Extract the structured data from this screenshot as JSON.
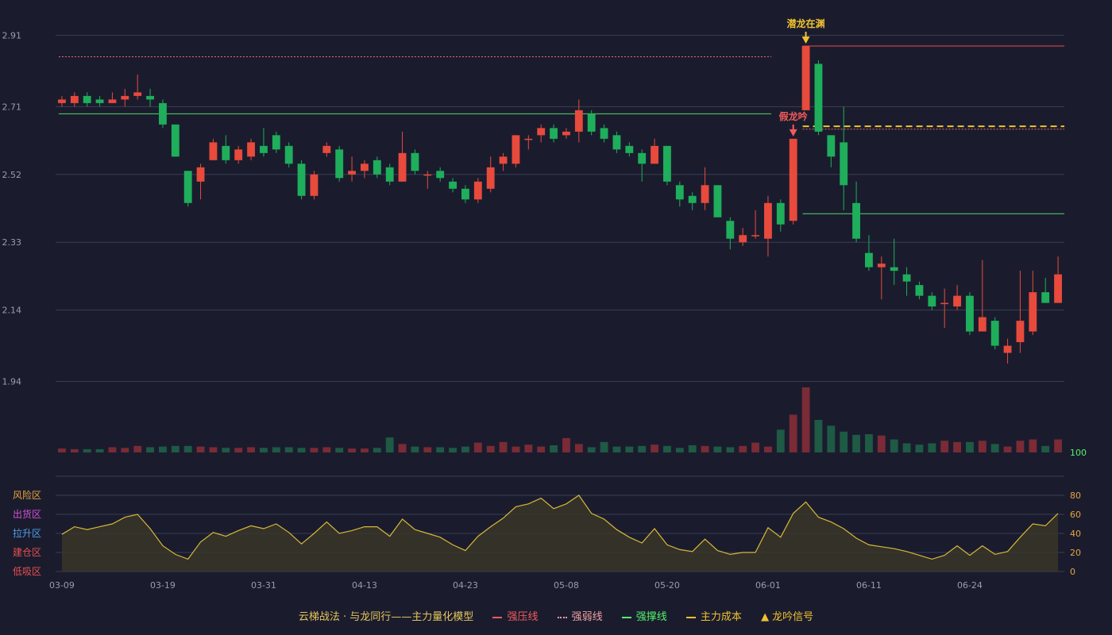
{
  "chart_data": {
    "type": "candlestick",
    "price_axis": {
      "ticks": [
        2.91,
        2.71,
        2.52,
        2.33,
        2.14,
        1.94
      ],
      "ylim": [
        1.89,
        2.96
      ]
    },
    "date_ticks": [
      {
        "index": 0,
        "label": "03-09"
      },
      {
        "index": 8,
        "label": "03-19"
      },
      {
        "index": 16,
        "label": "03-31"
      },
      {
        "index": 24,
        "label": "04-13"
      },
      {
        "index": 32,
        "label": "04-23"
      },
      {
        "index": 40,
        "label": "05-08"
      },
      {
        "index": 48,
        "label": "05-20"
      },
      {
        "index": 56,
        "label": "06-01"
      },
      {
        "index": 64,
        "label": "06-11"
      },
      {
        "index": 72,
        "label": "06-24"
      }
    ],
    "candles": [
      [
        2.72,
        2.73,
        2.71,
        2.74
      ],
      [
        2.72,
        2.74,
        2.71,
        2.75
      ],
      [
        2.74,
        2.72,
        2.71,
        2.75
      ],
      [
        2.73,
        2.72,
        2.71,
        2.74
      ],
      [
        2.72,
        2.73,
        2.72,
        2.75
      ],
      [
        2.73,
        2.74,
        2.71,
        2.76
      ],
      [
        2.74,
        2.75,
        2.73,
        2.8
      ],
      [
        2.74,
        2.73,
        2.71,
        2.76
      ],
      [
        2.72,
        2.66,
        2.65,
        2.73
      ],
      [
        2.66,
        2.57,
        2.57,
        2.66
      ],
      [
        2.53,
        2.44,
        2.43,
        2.53
      ],
      [
        2.5,
        2.54,
        2.45,
        2.55
      ],
      [
        2.56,
        2.61,
        2.56,
        2.62
      ],
      [
        2.6,
        2.56,
        2.55,
        2.63
      ],
      [
        2.56,
        2.59,
        2.55,
        2.6
      ],
      [
        2.57,
        2.61,
        2.56,
        2.62
      ],
      [
        2.6,
        2.58,
        2.57,
        2.65
      ],
      [
        2.63,
        2.59,
        2.58,
        2.64
      ],
      [
        2.6,
        2.55,
        2.54,
        2.61
      ],
      [
        2.55,
        2.46,
        2.45,
        2.56
      ],
      [
        2.46,
        2.52,
        2.45,
        2.53
      ],
      [
        2.58,
        2.6,
        2.57,
        2.61
      ],
      [
        2.59,
        2.51,
        2.5,
        2.6
      ],
      [
        2.52,
        2.53,
        2.5,
        2.57
      ],
      [
        2.53,
        2.55,
        2.51,
        2.56
      ],
      [
        2.56,
        2.52,
        2.51,
        2.57
      ],
      [
        2.54,
        2.5,
        2.49,
        2.55
      ],
      [
        2.5,
        2.58,
        2.5,
        2.64
      ],
      [
        2.58,
        2.53,
        2.52,
        2.59
      ],
      [
        2.52,
        2.52,
        2.48,
        2.53
      ],
      [
        2.53,
        2.51,
        2.5,
        2.54
      ],
      [
        2.5,
        2.48,
        2.47,
        2.51
      ],
      [
        2.48,
        2.45,
        2.44,
        2.49
      ],
      [
        2.45,
        2.5,
        2.44,
        2.51
      ],
      [
        2.48,
        2.54,
        2.47,
        2.57
      ],
      [
        2.55,
        2.57,
        2.53,
        2.58
      ],
      [
        2.55,
        2.63,
        2.54,
        2.63
      ],
      [
        2.62,
        2.62,
        2.59,
        2.63
      ],
      [
        2.63,
        2.65,
        2.61,
        2.66
      ],
      [
        2.65,
        2.62,
        2.61,
        2.66
      ],
      [
        2.63,
        2.64,
        2.62,
        2.65
      ],
      [
        2.64,
        2.7,
        2.61,
        2.73
      ],
      [
        2.69,
        2.64,
        2.63,
        2.7
      ],
      [
        2.65,
        2.62,
        2.61,
        2.66
      ],
      [
        2.63,
        2.59,
        2.58,
        2.64
      ],
      [
        2.6,
        2.58,
        2.57,
        2.61
      ],
      [
        2.58,
        2.55,
        2.5,
        2.59
      ],
      [
        2.55,
        2.6,
        2.55,
        2.62
      ],
      [
        2.6,
        2.5,
        2.49,
        2.6
      ],
      [
        2.49,
        2.45,
        2.43,
        2.5
      ],
      [
        2.46,
        2.44,
        2.42,
        2.47
      ],
      [
        2.44,
        2.49,
        2.42,
        2.54
      ],
      [
        2.49,
        2.4,
        2.4,
        2.49
      ],
      [
        2.39,
        2.34,
        2.31,
        2.4
      ],
      [
        2.33,
        2.35,
        2.32,
        2.37
      ],
      [
        2.35,
        2.35,
        2.34,
        2.42
      ],
      [
        2.34,
        2.44,
        2.29,
        2.46
      ],
      [
        2.44,
        2.38,
        2.36,
        2.45
      ],
      [
        2.39,
        2.62,
        2.38,
        2.62
      ],
      [
        2.7,
        2.88,
        2.7,
        2.88
      ],
      [
        2.83,
        2.64,
        2.63,
        2.84
      ],
      [
        2.63,
        2.57,
        2.54,
        2.63
      ],
      [
        2.61,
        2.49,
        2.42,
        2.71
      ],
      [
        2.44,
        2.34,
        2.33,
        2.5
      ],
      [
        2.3,
        2.26,
        2.25,
        2.35
      ],
      [
        2.26,
        2.27,
        2.17,
        2.29
      ],
      [
        2.26,
        2.25,
        2.21,
        2.34
      ],
      [
        2.24,
        2.22,
        2.18,
        2.26
      ],
      [
        2.21,
        2.18,
        2.17,
        2.22
      ],
      [
        2.18,
        2.15,
        2.14,
        2.19
      ],
      [
        2.16,
        2.16,
        2.09,
        2.2
      ],
      [
        2.15,
        2.18,
        2.14,
        2.21
      ],
      [
        2.18,
        2.08,
        2.07,
        2.19
      ],
      [
        2.08,
        2.12,
        2.08,
        2.28
      ],
      [
        2.11,
        2.04,
        2.03,
        2.12
      ],
      [
        2.02,
        2.04,
        1.99,
        2.06
      ],
      [
        2.05,
        2.11,
        2.02,
        2.25
      ],
      [
        2.08,
        2.19,
        2.07,
        2.25
      ],
      [
        2.19,
        2.16,
        2.16,
        2.23
      ],
      [
        2.16,
        2.24,
        2.16,
        2.29
      ]
    ],
    "volume": [
      6,
      5,
      5,
      5,
      8,
      7,
      10,
      8,
      9,
      10,
      10,
      9,
      8,
      7,
      7,
      8,
      7,
      8,
      8,
      7,
      7,
      8,
      7,
      6,
      6,
      7,
      23,
      13,
      9,
      8,
      8,
      7,
      9,
      15,
      10,
      16,
      9,
      12,
      9,
      11,
      22,
      13,
      8,
      16,
      9,
      9,
      10,
      12,
      10,
      7,
      11,
      10,
      9,
      8,
      10,
      15,
      9,
      35,
      58,
      100,
      50,
      41,
      32,
      27,
      28,
      26,
      20,
      14,
      12,
      14,
      18,
      16,
      16,
      18,
      13,
      9,
      18,
      20,
      10,
      20
    ],
    "volume_axis_label": "100",
    "indicator": {
      "values": [
        39,
        47,
        44,
        47,
        50,
        57,
        60,
        45,
        27,
        18,
        13,
        31,
        41,
        37,
        43,
        48,
        45,
        50,
        41,
        29,
        40,
        52,
        40,
        43,
        47,
        47,
        37,
        55,
        44,
        40,
        36,
        28,
        22,
        37,
        47,
        56,
        68,
        71,
        77,
        66,
        71,
        80,
        61,
        55,
        44,
        36,
        30,
        45,
        28,
        23,
        21,
        34,
        22,
        18,
        20,
        20,
        46,
        36,
        61,
        73,
        57,
        52,
        45,
        35,
        28,
        26,
        24,
        21,
        17,
        13,
        17,
        27,
        17,
        27,
        18,
        21,
        36,
        50,
        48,
        61
      ],
      "ylim": [
        0,
        100
      ],
      "right_ticks": [
        "100",
        "80",
        "60",
        "40",
        "20",
        "0"
      ],
      "zones": [
        {
          "label": "风险区",
          "value": 80,
          "color": "#e8a33a"
        },
        {
          "label": "出货区",
          "value": 60,
          "color": "#d64fd6"
        },
        {
          "label": "拉升区",
          "value": 40,
          "color": "#4f9ee8"
        },
        {
          "label": "建仓区",
          "value": 20,
          "color": "#e84f4f"
        },
        {
          "label": "低吸区",
          "value": 0,
          "color": "#e84f4f"
        }
      ]
    },
    "levels": [
      {
        "name": "强弱线",
        "price": 2.85,
        "from": 0,
        "to": 56,
        "style": "dotted",
        "color": "#e86c6c"
      },
      {
        "name": "强撑线",
        "price": 2.69,
        "from": 0,
        "to": 56,
        "style": "solid",
        "color": "#56d66a"
      },
      {
        "name": "强压线",
        "price": 2.88,
        "from": 59,
        "to": 79,
        "style": "solid",
        "color": "#e84a4a"
      },
      {
        "name": "主力成本",
        "price": 2.655,
        "from": 59,
        "to": 79,
        "style": "dashed",
        "color": "#f2c12e"
      },
      {
        "name": "强弱线",
        "price": 2.647,
        "from": 59,
        "to": 79,
        "style": "dotted",
        "color": "#e86c6c"
      },
      {
        "name": "强撑线",
        "price": 2.41,
        "from": 59,
        "to": 79,
        "style": "solid",
        "color": "#56d66a"
      }
    ],
    "signals": [
      {
        "index": 59,
        "price": 2.88,
        "label": "潜龙在渊",
        "color": "#f2c12e"
      },
      {
        "index": 58,
        "price": 2.62,
        "label": "假龙吟",
        "color": "#f25a5a"
      }
    ],
    "colors": {
      "up": "#e84a3c",
      "down": "#1fae5b",
      "grid": "#3a3d52",
      "axis_text": "#9a9cab",
      "indicator_line": "#d6b836",
      "bg": "#1a1c2e"
    }
  },
  "legend": {
    "title": "云梯战法 · 与龙同行——主力量化模型",
    "items": [
      {
        "label": "强压线",
        "color": "#f25a5a",
        "style": "solid"
      },
      {
        "label": "强弱线",
        "color": "#f2a0a0",
        "style": "dotted"
      },
      {
        "label": "强撑线",
        "color": "#56f26a",
        "style": "solid"
      },
      {
        "label": "主力成本",
        "color": "#f2c12e",
        "style": "dashed"
      },
      {
        "label": "龙吟信号",
        "color": "#f2c12e",
        "style": "triangle"
      }
    ]
  }
}
